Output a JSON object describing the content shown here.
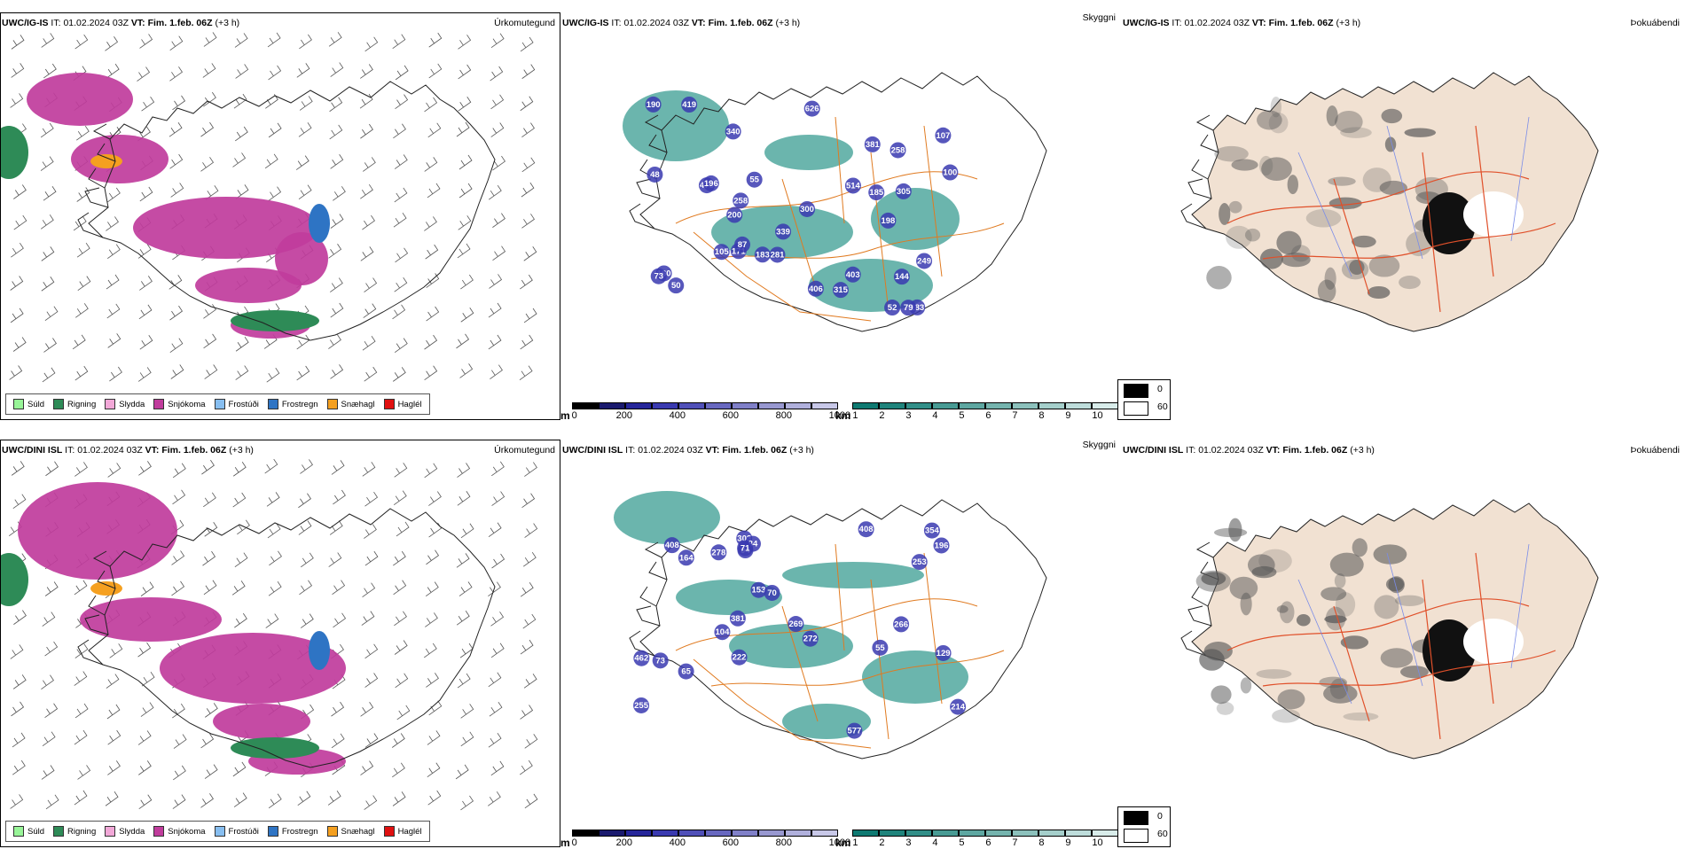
{
  "rows": [
    {
      "model": "UWC/IG-IS",
      "it_label": "IT:",
      "it_value": "01.02.2024 03Z",
      "vt_label": "VT:",
      "vt_value": "Fim. 1.feb. 06Z",
      "lead": "(+3 h)",
      "vis_labels": [
        "339",
        "478",
        "419",
        "198",
        "183",
        "340",
        "281",
        "200",
        "171",
        "185",
        "305",
        "626",
        "190",
        "52",
        "258",
        "403",
        "300",
        "100",
        "107",
        "55",
        "79",
        "196",
        "315",
        "105",
        "144",
        "514",
        "406",
        "160",
        "258",
        "73",
        "87",
        "183",
        "50",
        "249",
        "381",
        "48"
      ]
    },
    {
      "model": "UWC/DINI ISL",
      "it_label": "IT:",
      "it_value": "01.02.2024 03Z",
      "vt_label": "VT:",
      "vt_value": "Fim. 1.feb. 06Z",
      "lead": "(+3 h)",
      "vis_labels": [
        "269",
        "462",
        "408",
        "381",
        "577",
        "253",
        "255",
        "214",
        "55",
        "354",
        "222",
        "73",
        "153",
        "129",
        "65",
        "408",
        "278",
        "303",
        "104",
        "272",
        "196",
        "84",
        "164",
        "94",
        "71",
        "70",
        "266"
      ]
    }
  ],
  "panel_titles": {
    "precip": "Úrkomutegund",
    "visibility": "Skyggni",
    "fog": "Þokuábendi"
  },
  "precip_legend": [
    {
      "label": "Súld",
      "color": "#98f598"
    },
    {
      "label": "Rigning",
      "color": "#2e8b57"
    },
    {
      "label": "Slydda",
      "color": "#f2a8d8"
    },
    {
      "label": "Snjókoma",
      "color": "#c03c9c"
    },
    {
      "label": "Frostúði",
      "color": "#87bef0"
    },
    {
      "label": "Frostregn",
      "color": "#2e74c4"
    },
    {
      "label": "Snæhagl",
      "color": "#f5a020"
    },
    {
      "label": "Haglél",
      "color": "#e01010"
    }
  ],
  "ceiling_scale": {
    "unit": "m",
    "ticks": [
      "0",
      "200",
      "400",
      "600",
      "800",
      "1000"
    ],
    "colors": [
      "#000000",
      "#1a1a6e",
      "#26269a",
      "#3a3ab0",
      "#5050b8",
      "#6868c0",
      "#8080c8",
      "#9898d0",
      "#b0b0dc",
      "#c8c8e8"
    ]
  },
  "visibility_scale": {
    "unit": "km",
    "ticks": [
      "1",
      "2",
      "3",
      "4",
      "5",
      "6",
      "7",
      "8",
      "9",
      "10"
    ],
    "colors": [
      "#0f7a72",
      "#1f847c",
      "#328f88",
      "#489b94",
      "#5ea7a1",
      "#75b4ae",
      "#8cc1bc",
      "#a5cfcb",
      "#bedddb",
      "#d8ecea"
    ]
  },
  "fog_legend": [
    {
      "label": "0",
      "color": "#000000"
    },
    {
      "label": "60",
      "color": "#ffffff"
    }
  ]
}
